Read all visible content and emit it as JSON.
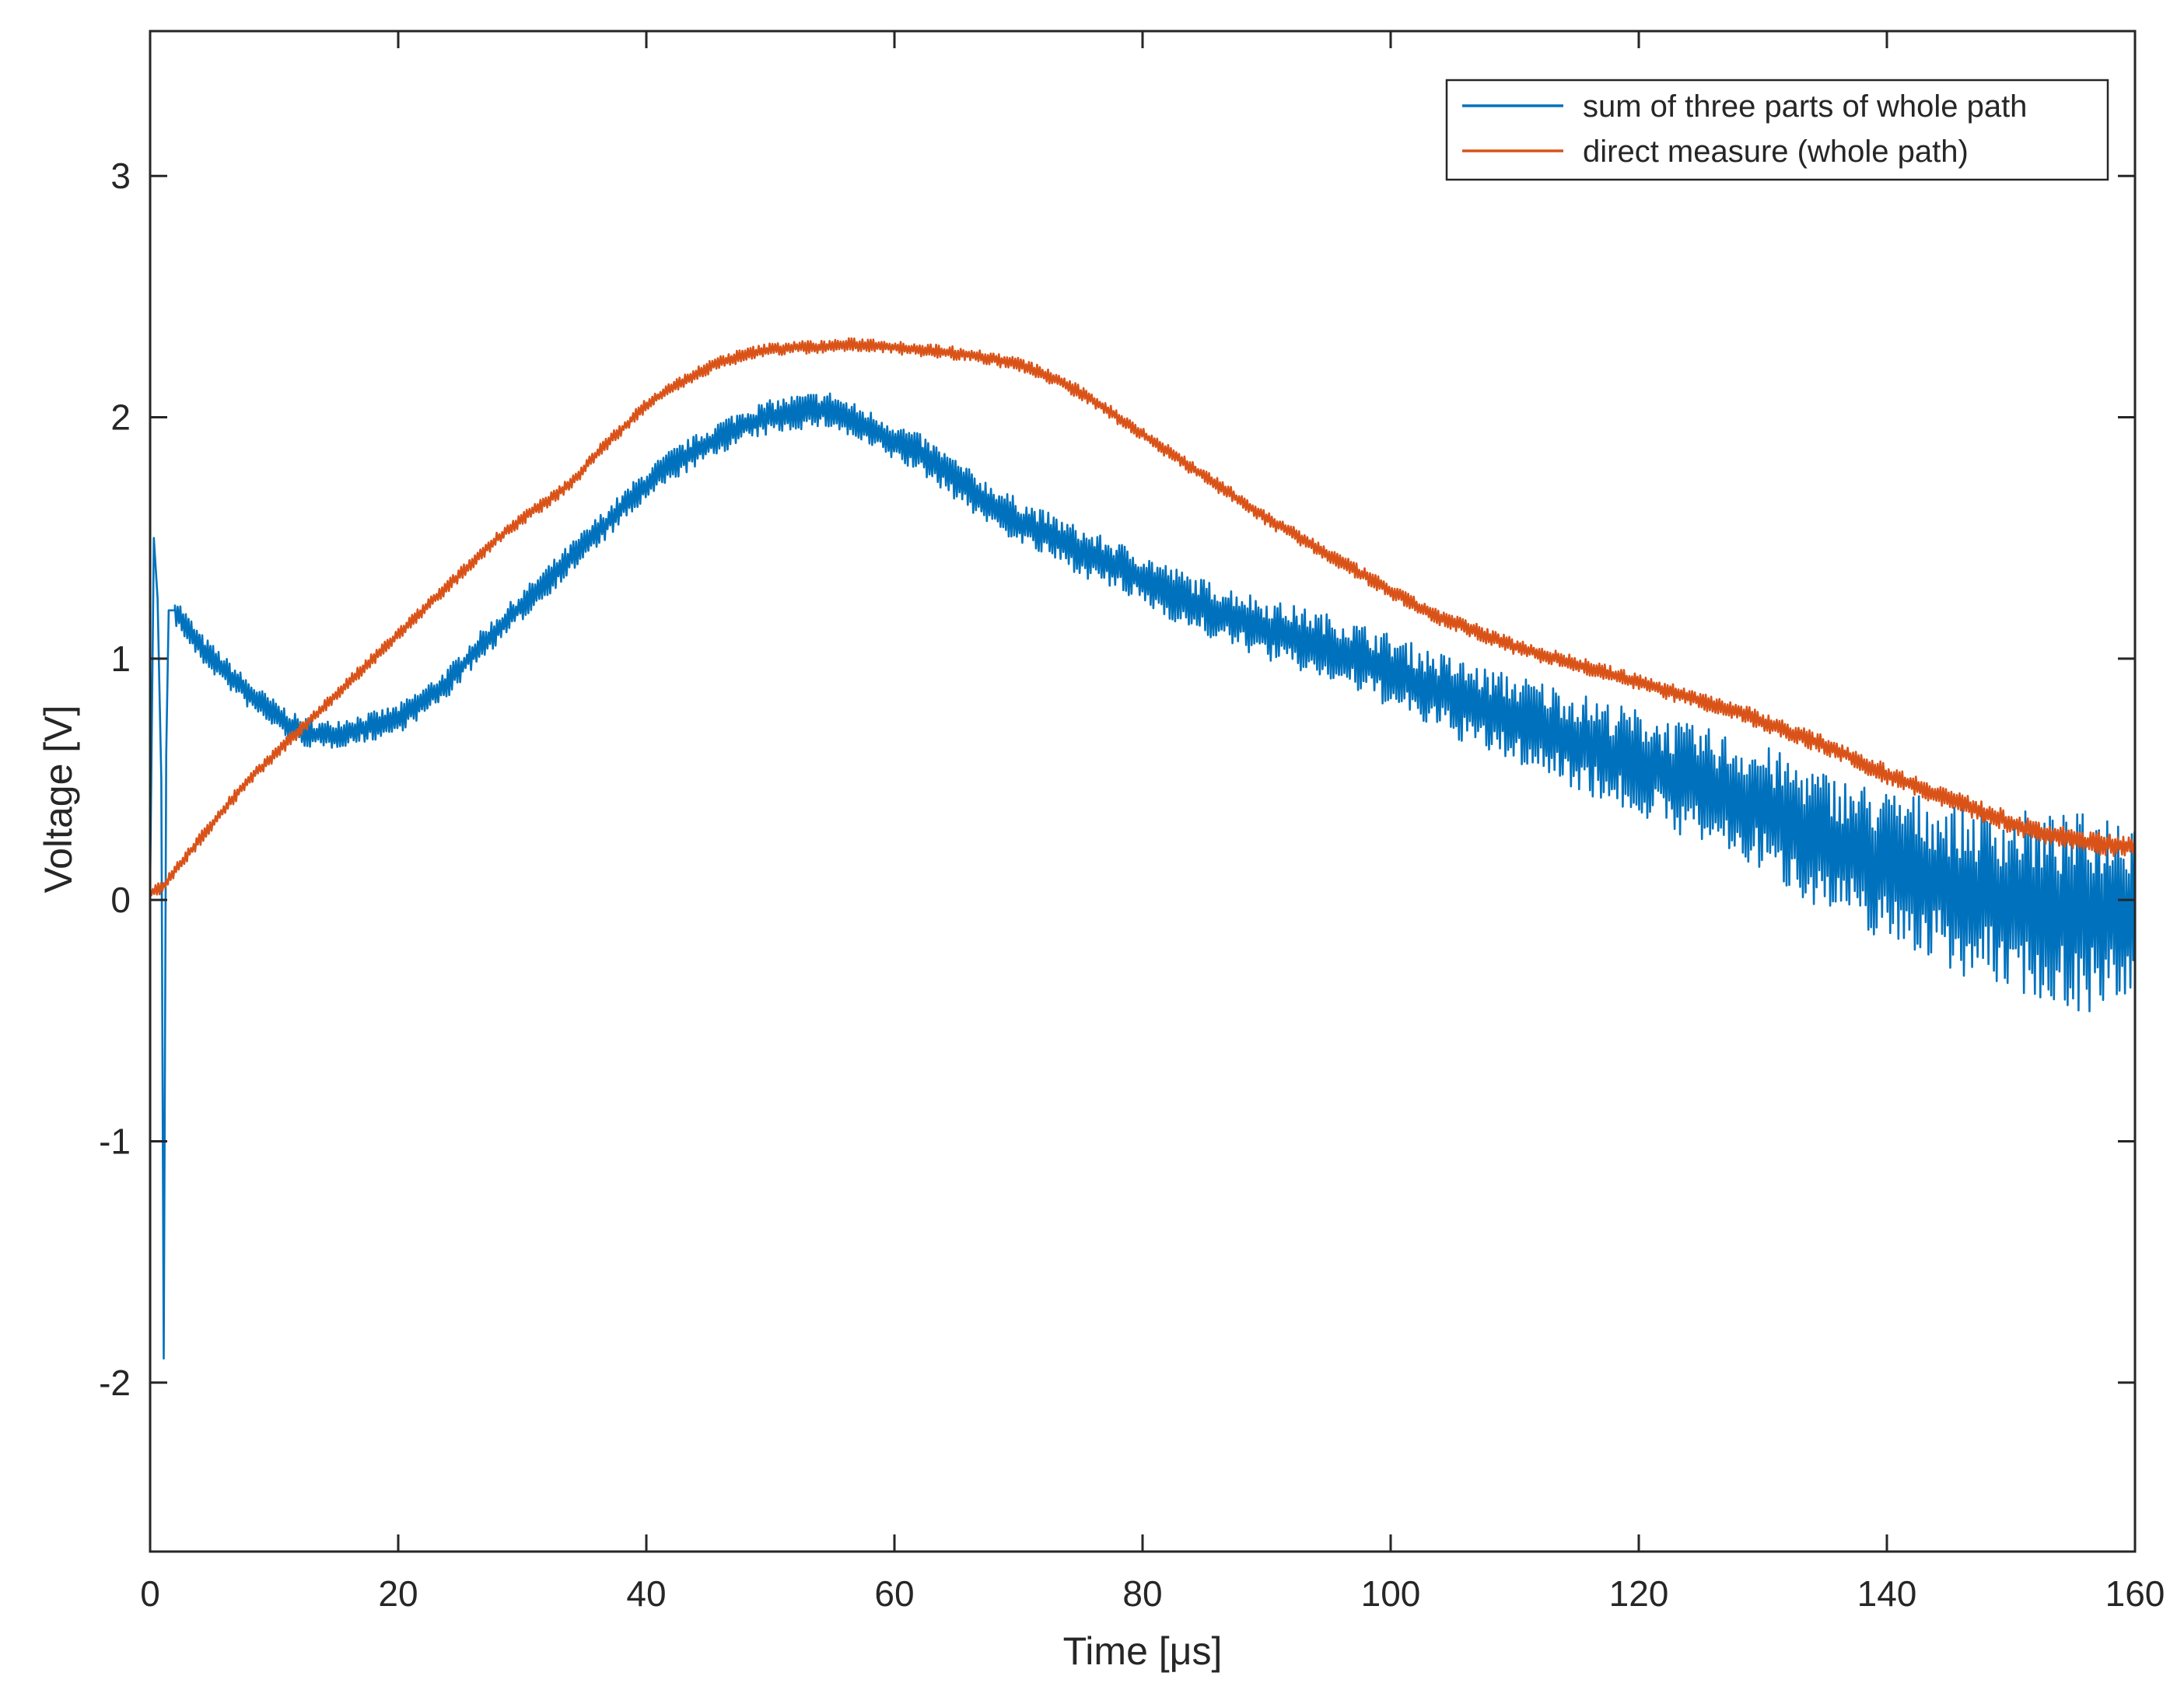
{
  "chart_data": {
    "type": "line",
    "title": "",
    "xlabel": "Time [μs]",
    "ylabel": "Voltage [V]",
    "xlim": [
      0,
      160
    ],
    "ylim": [
      -2.7,
      3.6
    ],
    "xticks": [
      0,
      20,
      40,
      60,
      80,
      100,
      120,
      140,
      160
    ],
    "yticks": [
      -2,
      -1,
      0,
      1,
      2,
      3
    ],
    "grid": false,
    "legend_position": "top-right",
    "colors": {
      "axes": "#262626",
      "background": "#ffffff"
    },
    "series": [
      {
        "name": "sum of three parts of whole path",
        "color": "#0072BD",
        "noise_growth": 1.6,
        "noise_amp": 0.04,
        "x": [
          0,
          0.3,
          0.6,
          0.9,
          1.1,
          1.3,
          1.5,
          2,
          4,
          6,
          8,
          10,
          12,
          14,
          16,
          18,
          20,
          22,
          24,
          26,
          28,
          30,
          32,
          34,
          36,
          38,
          40,
          42,
          44,
          46,
          48,
          50,
          52,
          54,
          55,
          56,
          58,
          60,
          62,
          64,
          66,
          68,
          70,
          72,
          74,
          76,
          78,
          80,
          82,
          84,
          86,
          88,
          90,
          92,
          94,
          96,
          98,
          100,
          102,
          104,
          106,
          108,
          110,
          112,
          114,
          116,
          118,
          120,
          122,
          124,
          126,
          128,
          130,
          132,
          134,
          136,
          138,
          140,
          142,
          144,
          146,
          148,
          150,
          152,
          154,
          156,
          158,
          160
        ],
        "values": [
          0.05,
          1.5,
          1.25,
          0.5,
          -1.9,
          0.6,
          1.2,
          1.2,
          1.05,
          0.95,
          0.85,
          0.77,
          0.7,
          0.68,
          0.7,
          0.72,
          0.75,
          0.82,
          0.9,
          1.02,
          1.12,
          1.22,
          1.32,
          1.42,
          1.52,
          1.62,
          1.72,
          1.8,
          1.86,
          1.92,
          1.97,
          2.0,
          2.02,
          2.03,
          2.03,
          2.0,
          1.95,
          1.9,
          1.85,
          1.78,
          1.7,
          1.63,
          1.57,
          1.52,
          1.47,
          1.42,
          1.38,
          1.33,
          1.28,
          1.23,
          1.19,
          1.16,
          1.12,
          1.09,
          1.06,
          1.03,
          0.99,
          0.95,
          0.9,
          0.86,
          0.82,
          0.78,
          0.75,
          0.72,
          0.68,
          0.64,
          0.6,
          0.57,
          0.53,
          0.49,
          0.46,
          0.42,
          0.38,
          0.32,
          0.27,
          0.22,
          0.18,
          0.14,
          0.12,
          0.08,
          0.04,
          0.02,
          0.0,
          -0.02,
          -0.05,
          -0.05,
          -0.05,
          -0.05
        ]
      },
      {
        "name": "direct measure (whole path)",
        "color": "#D95319",
        "noise_growth": 0.2,
        "noise_amp": 0.018,
        "x": [
          0,
          1,
          2,
          4,
          6,
          8,
          10,
          12,
          14,
          16,
          18,
          20,
          22,
          24,
          26,
          28,
          30,
          32,
          34,
          36,
          38,
          40,
          42,
          44,
          46,
          48,
          50,
          52,
          54,
          56,
          58,
          60,
          62,
          64,
          66,
          68,
          70,
          72,
          74,
          76,
          78,
          80,
          82,
          84,
          86,
          88,
          90,
          92,
          94,
          96,
          98,
          100,
          102,
          104,
          106,
          108,
          110,
          112,
          114,
          116,
          118,
          120,
          122,
          124,
          126,
          128,
          130,
          132,
          134,
          136,
          138,
          140,
          142,
          144,
          146,
          148,
          150,
          152,
          154,
          156,
          158,
          160
        ],
        "values": [
          0.03,
          0.05,
          0.12,
          0.25,
          0.38,
          0.5,
          0.6,
          0.7,
          0.8,
          0.9,
          1.0,
          1.1,
          1.2,
          1.3,
          1.4,
          1.5,
          1.58,
          1.65,
          1.73,
          1.85,
          1.95,
          2.05,
          2.12,
          2.18,
          2.23,
          2.26,
          2.28,
          2.29,
          2.29,
          2.3,
          2.3,
          2.29,
          2.28,
          2.27,
          2.26,
          2.24,
          2.22,
          2.18,
          2.13,
          2.07,
          2.0,
          1.93,
          1.86,
          1.79,
          1.72,
          1.65,
          1.58,
          1.52,
          1.46,
          1.4,
          1.34,
          1.28,
          1.22,
          1.17,
          1.13,
          1.09,
          1.05,
          1.02,
          0.99,
          0.96,
          0.93,
          0.9,
          0.87,
          0.84,
          0.81,
          0.78,
          0.74,
          0.7,
          0.66,
          0.62,
          0.57,
          0.52,
          0.48,
          0.44,
          0.4,
          0.36,
          0.32,
          0.28,
          0.26,
          0.24,
          0.23,
          0.22
        ]
      }
    ]
  }
}
